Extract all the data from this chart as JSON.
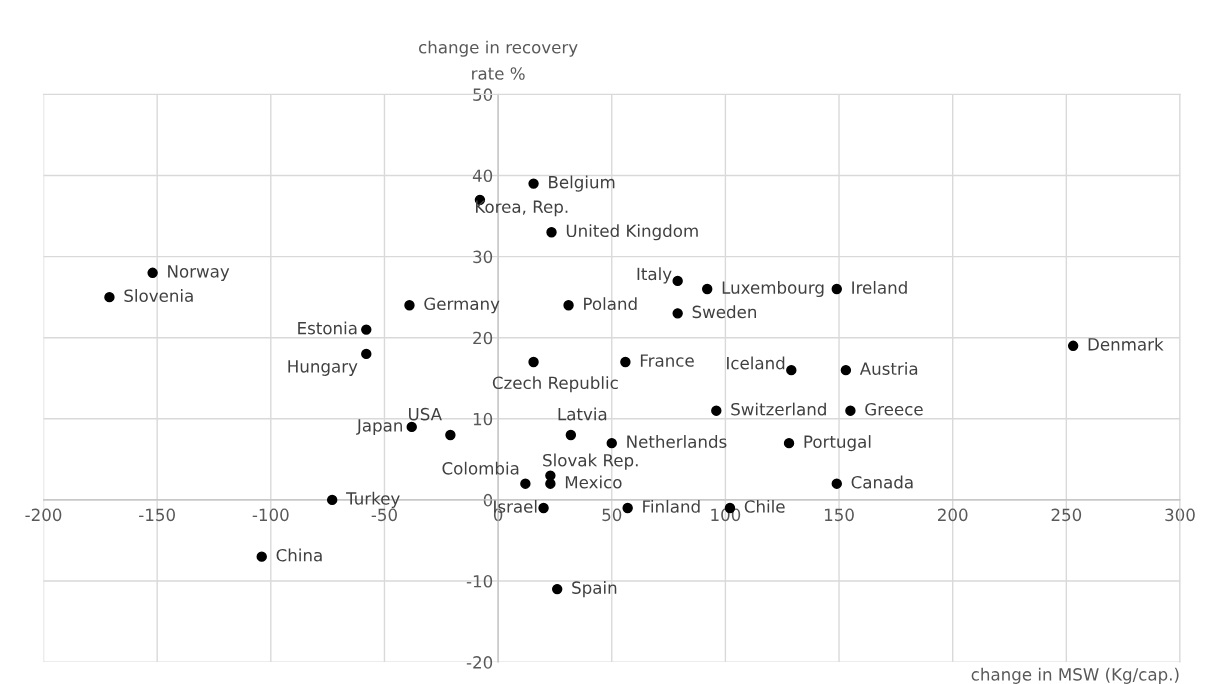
{
  "chart_data": {
    "type": "scatter",
    "xlabel": "change in MSW (Kg/cap.)",
    "ylabel": "change in recovery\nrate %",
    "xlim": [
      -200,
      300
    ],
    "xticks": [
      -200,
      -150,
      -100,
      -50,
      0,
      50,
      100,
      150,
      200,
      250,
      300
    ],
    "ylim": [
      -20,
      50
    ],
    "yticks": [
      -20,
      -10,
      0,
      10,
      20,
      30,
      40,
      50
    ],
    "grid": true,
    "marker": "circle",
    "series": [
      {
        "color": "#000000",
        "x": [
          15.6,
          -8,
          23.5,
          -152,
          -171,
          -39,
          -58,
          -58,
          31,
          79,
          92,
          149,
          79,
          253,
          56,
          15.6,
          129,
          153,
          96,
          155,
          32,
          -38,
          -21,
          50,
          128,
          23,
          12,
          23,
          149,
          -73,
          20,
          57,
          102,
          -104,
          26
        ],
        "values": [
          39,
          37,
          33,
          28,
          25,
          24,
          21,
          18,
          24,
          27,
          26,
          26,
          23,
          19,
          17,
          17,
          16,
          16,
          11,
          11,
          8,
          9,
          8,
          7,
          7,
          3,
          2,
          2,
          2,
          0,
          -1,
          -1,
          -1,
          -7,
          -11
        ]
      }
    ],
    "annotations": [
      {
        "text": "Belgium",
        "x": 15.6,
        "y": 39
      },
      {
        "text": "Korea, Rep.",
        "x": -8,
        "y": 37
      },
      {
        "text": "United Kingdom",
        "x": 23.5,
        "y": 33
      },
      {
        "text": "Norway",
        "x": -152,
        "y": 28
      },
      {
        "text": "Slovenia",
        "x": -171,
        "y": 25
      },
      {
        "text": "Germany",
        "x": -39,
        "y": 24
      },
      {
        "text": "Estonia",
        "x": -58,
        "y": 21
      },
      {
        "text": "Hungary",
        "x": -58,
        "y": 18
      },
      {
        "text": "Poland",
        "x": 31,
        "y": 24
      },
      {
        "text": "Italy",
        "x": 79,
        "y": 27
      },
      {
        "text": "Luxembourg",
        "x": 92,
        "y": 26
      },
      {
        "text": "Ireland",
        "x": 149,
        "y": 26
      },
      {
        "text": "Sweden",
        "x": 79,
        "y": 23
      },
      {
        "text": "Denmark",
        "x": 253,
        "y": 19
      },
      {
        "text": "France",
        "x": 56,
        "y": 17
      },
      {
        "text": "Czech Republic",
        "x": 15.6,
        "y": 17
      },
      {
        "text": "Iceland",
        "x": 129,
        "y": 16
      },
      {
        "text": "Austria",
        "x": 153,
        "y": 16
      },
      {
        "text": "Switzerland",
        "x": 96,
        "y": 11
      },
      {
        "text": "Greece",
        "x": 155,
        "y": 11
      },
      {
        "text": "Latvia",
        "x": 32,
        "y": 8
      },
      {
        "text": "Japan",
        "x": -38,
        "y": 9
      },
      {
        "text": "USA",
        "x": -21,
        "y": 8
      },
      {
        "text": "Netherlands",
        "x": 50,
        "y": 7
      },
      {
        "text": "Portugal",
        "x": 128,
        "y": 7
      },
      {
        "text": "Slovak Rep.",
        "x": 23,
        "y": 3
      },
      {
        "text": "Colombia",
        "x": 12,
        "y": 2
      },
      {
        "text": "Mexico",
        "x": 23,
        "y": 2
      },
      {
        "text": "Canada",
        "x": 149,
        "y": 2
      },
      {
        "text": "Turkey",
        "x": -73,
        "y": 0
      },
      {
        "text": "Israel",
        "x": 20,
        "y": -1
      },
      {
        "text": "Finland",
        "x": 57,
        "y": -1
      },
      {
        "text": "Chile",
        "x": 102,
        "y": -1
      },
      {
        "text": "China",
        "x": -104,
        "y": -7
      },
      {
        "text": "Spain",
        "x": 26,
        "y": -11
      }
    ]
  }
}
